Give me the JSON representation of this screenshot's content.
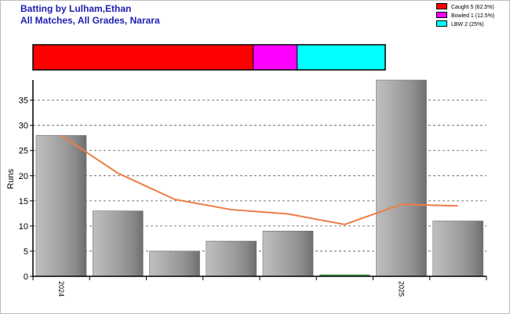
{
  "header": {
    "title_line1": "Batting by Lulham,Ethan",
    "title_line2": "All Matches, All Grades, Narara",
    "title_color": "#1f1fb0"
  },
  "legend": {
    "items": [
      {
        "label": "Caught 5 (62.5%)",
        "color": "#ff0000",
        "fraction": 0.625
      },
      {
        "label": "Bowled 1 (12.5%)",
        "color": "#ff00ff",
        "fraction": 0.125
      },
      {
        "label": "LBW 2 (25%)",
        "color": "#00ffff",
        "fraction": 0.25
      }
    ]
  },
  "chart_data": {
    "type": "bar",
    "ylabel": "Runs",
    "xlabel": "",
    "ylim": [
      0,
      39
    ],
    "yticks": [
      0,
      5,
      10,
      15,
      20,
      25,
      30,
      35
    ],
    "grid": true,
    "legend_position": "top-right",
    "bar_color": "#9a9a9a",
    "line_color": "#ed7d45",
    "x_tick_labels": [
      {
        "index": 0,
        "label": "2024"
      },
      {
        "index": 6,
        "label": "2025"
      }
    ],
    "series": [
      {
        "type": "bar",
        "values": [
          28,
          13,
          5,
          7,
          9,
          0,
          39,
          11
        ]
      },
      {
        "type": "line",
        "values": [
          28,
          20.5,
          15.3,
          13.25,
          12.4,
          10.3,
          14.3,
          14
        ]
      }
    ]
  }
}
